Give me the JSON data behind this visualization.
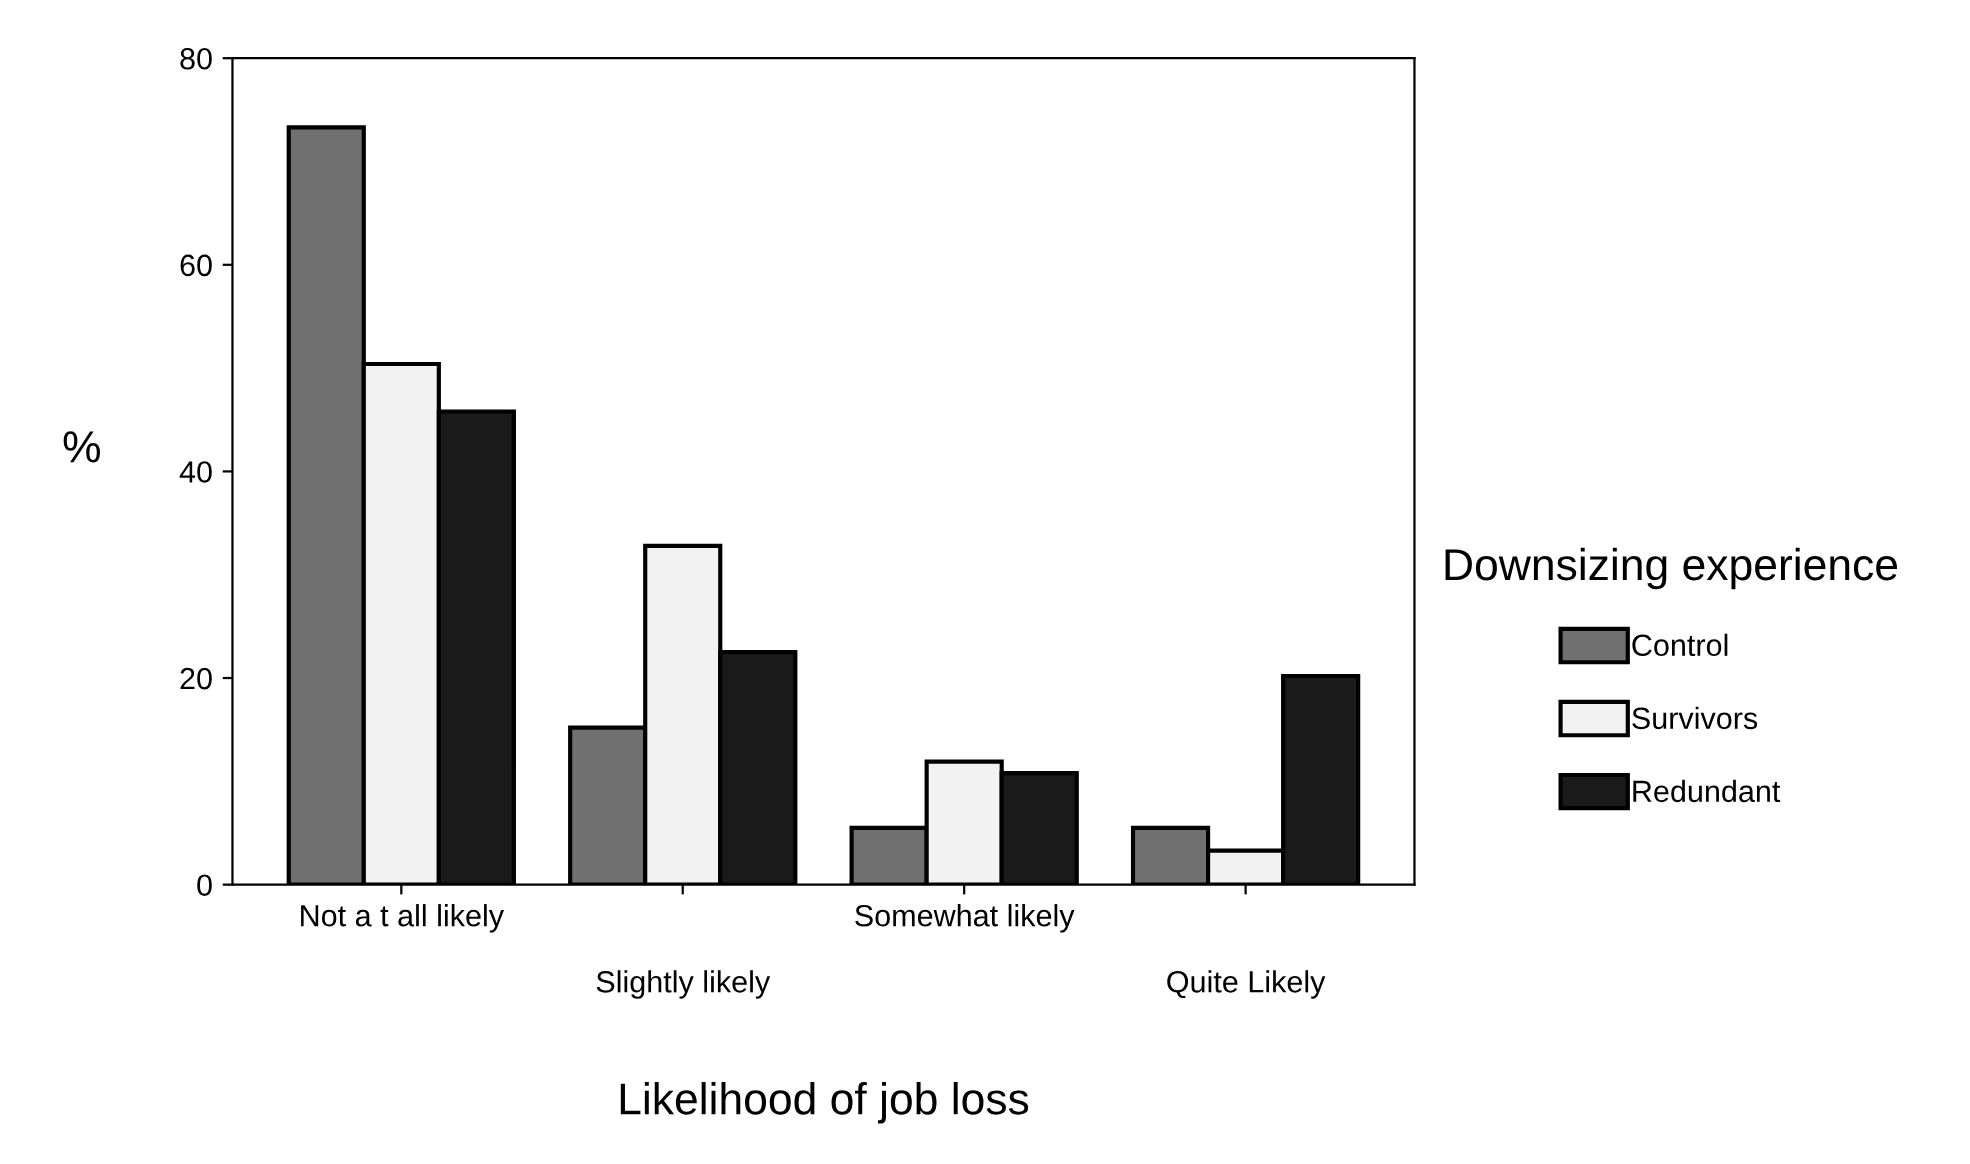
{
  "chart_data": {
    "type": "bar",
    "xlabel": "Likelihood of job loss",
    "ylabel": "%",
    "legend_title": "Downsizing experience",
    "categories": [
      "Not a t all likely",
      "Slightly likely",
      "Somewhat likely",
      "Quite Likely"
    ],
    "series": [
      {
        "name": "Control",
        "color": "#707070",
        "values": [
          73.3,
          15.2,
          5.5,
          5.5
        ]
      },
      {
        "name": "Survivors",
        "color": "#f2f2f2",
        "values": [
          50.4,
          32.8,
          11.9,
          3.3
        ]
      },
      {
        "name": "Redundant",
        "color": "#1a1a1a",
        "values": [
          45.8,
          22.5,
          10.8,
          20.2
        ]
      }
    ],
    "ylim": [
      0,
      80
    ],
    "yticks": [
      0,
      20,
      40,
      60,
      80
    ],
    "grid": false,
    "legend": "right"
  }
}
